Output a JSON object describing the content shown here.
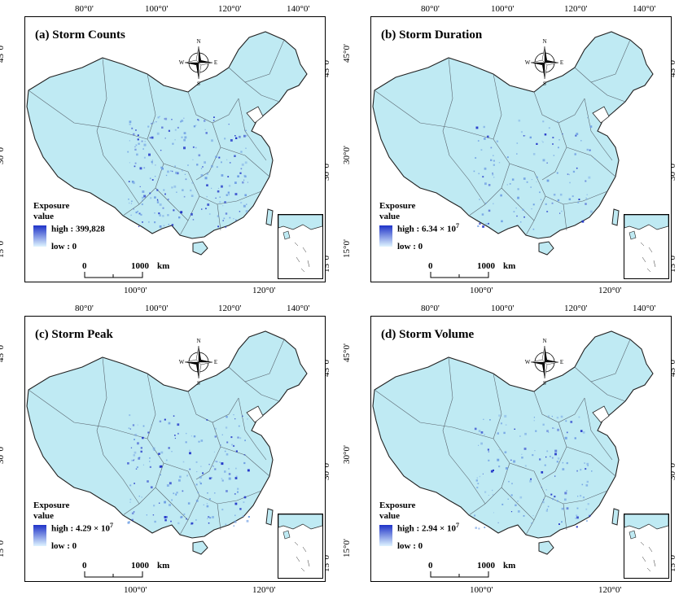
{
  "panels": [
    {
      "title": "(a) Storm Counts",
      "high": "high : 399,828",
      "high_exp": "",
      "low": "low : 0",
      "intensity": 0.85
    },
    {
      "title": "(b) Storm Duration",
      "high": "high : 6.34 × 10",
      "high_exp": "7",
      "low": "low : 0",
      "intensity": 0.45
    },
    {
      "title": "(c) Storm Peak",
      "high": "high : 4.29 × 10",
      "high_exp": "7",
      "low": "low : 0",
      "intensity": 0.7
    },
    {
      "title": "(d) Storm Volume",
      "high": "high : 2.94 × 10",
      "high_exp": "7",
      "low": "low : 0",
      "intensity": 0.55
    }
  ],
  "legend": {
    "title_line1": "Exposure",
    "title_line2": "value"
  },
  "axis": {
    "top_lon": [
      "80°0'",
      "100°0'",
      "120°0'",
      "140°0'"
    ],
    "bottom_lon": [
      "100°0'",
      "120°0'"
    ],
    "left_lat": [
      "45°0'",
      "30°0'",
      "15°0'"
    ],
    "right_lat": [
      "45°0'",
      "30°0'",
      "15°0'"
    ]
  },
  "scale_bar": {
    "zero": "0",
    "distance": "1000",
    "unit": "km"
  },
  "compass": {
    "n": "N",
    "s": "S",
    "e": "E",
    "w": "W"
  },
  "colors": {
    "land": "#bfeaf3",
    "low": "#dff4ff",
    "high": "#1f33c8",
    "border": "#5a6670"
  }
}
